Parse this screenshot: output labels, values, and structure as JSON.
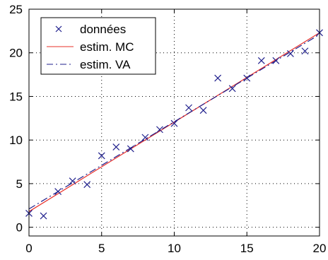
{
  "chart_data": {
    "type": "scatter",
    "xlim": [
      0,
      20
    ],
    "ylim": [
      -1,
      25
    ],
    "x_ticks": [
      0,
      5,
      10,
      15,
      20
    ],
    "y_ticks": [
      0,
      5,
      10,
      15,
      20,
      25
    ],
    "grid": true,
    "legend_position": "top-left",
    "series": [
      {
        "name": "données",
        "kind": "points",
        "marker": "x",
        "color": "#1f1f8c",
        "x": [
          0,
          1,
          2,
          3,
          4,
          5,
          6,
          7,
          8,
          9,
          10,
          11,
          12,
          13,
          14,
          15,
          16,
          17,
          18,
          19,
          20
        ],
        "y": [
          1.6,
          1.3,
          4.1,
          5.3,
          4.9,
          8.2,
          9.2,
          9.0,
          10.3,
          11.2,
          11.9,
          13.7,
          13.4,
          17.1,
          15.9,
          17.1,
          19.1,
          19.1,
          19.9,
          20.2,
          22.3
        ]
      },
      {
        "name": "estim. MC",
        "kind": "line",
        "style": "solid",
        "color": "#e8302a",
        "x": [
          0,
          20
        ],
        "y": [
          1.8,
          22.3
        ]
      },
      {
        "name": "estim. VA",
        "kind": "line",
        "style": "dashdot",
        "color": "#1f1f8c",
        "x": [
          0,
          20
        ],
        "y": [
          2.1,
          22.1
        ]
      }
    ]
  }
}
